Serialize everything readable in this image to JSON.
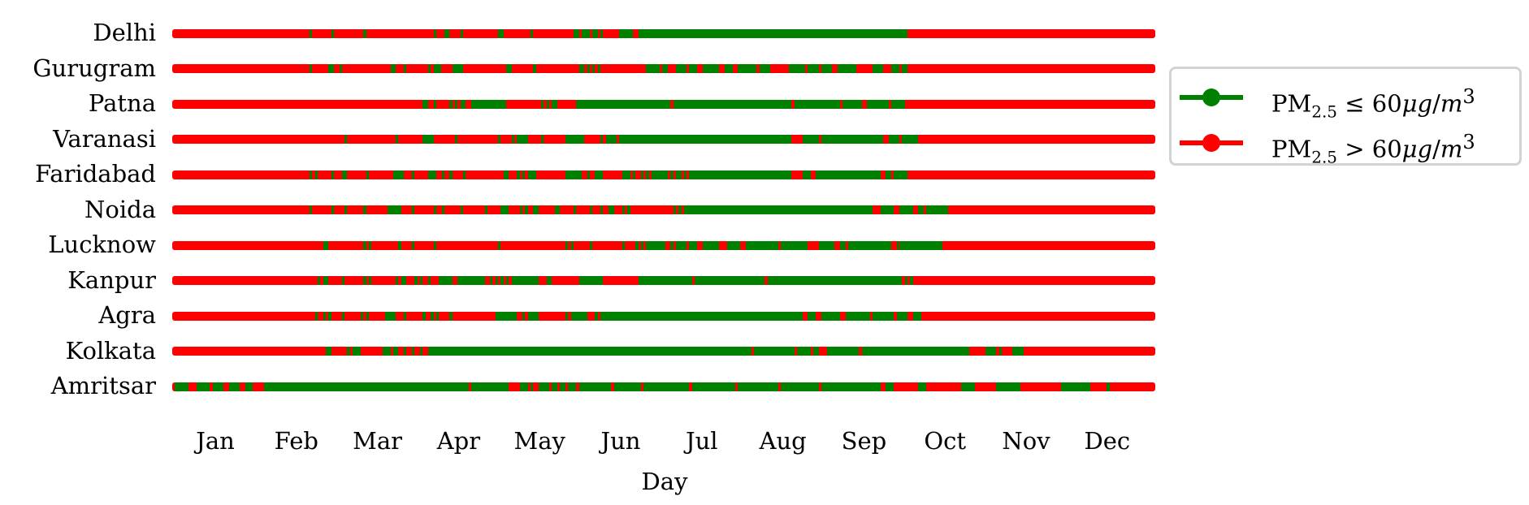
{
  "chart_data": {
    "type": "heatmap",
    "title": "",
    "xlabel": "Day",
    "ylabel": "",
    "x_range_days": [
      0,
      365
    ],
    "x_tick_labels": [
      "Jan",
      "Feb",
      "Mar",
      "Apr",
      "May",
      "Jun",
      "Jul",
      "Aug",
      "Sep",
      "Oct",
      "Nov",
      "Dec"
    ],
    "categories": [
      "Delhi",
      "Gurugram",
      "Patna",
      "Varanasi",
      "Faridabad",
      "Noida",
      "Lucknow",
      "Kanpur",
      "Agra",
      "Kolkata",
      "Amritsar"
    ],
    "colors": {
      "good": "#008000",
      "bad": "#ff0000"
    },
    "legend": [
      {
        "label": "PM2.5 ≤ 60μg/m3",
        "color": "#008000"
      },
      {
        "label": "PM2.5 > 60μg/m3",
        "color": "#ff0000"
      }
    ],
    "legend_position": "upper right, outside plot",
    "note": "Each row is a daily timeline; listed intervals are days (start,end) where PM2.5 ≤ 60 (green); all other days are > 60 (red).",
    "series": [
      {
        "name": "Delhi",
        "good_days": [
          [
            51,
            52
          ],
          [
            59,
            60
          ],
          [
            71,
            72
          ],
          [
            97,
            98
          ],
          [
            101,
            103
          ],
          [
            107,
            108
          ],
          [
            121,
            123
          ],
          [
            133,
            134
          ],
          [
            149,
            151
          ],
          [
            152,
            155
          ],
          [
            156,
            158
          ],
          [
            159,
            160
          ],
          [
            166,
            171
          ],
          [
            173,
            273
          ]
        ]
      },
      {
        "name": "Gurugram",
        "good_days": [
          [
            51,
            52
          ],
          [
            58,
            60
          ],
          [
            62,
            63
          ],
          [
            81,
            83
          ],
          [
            86,
            87
          ],
          [
            95,
            96
          ],
          [
            97,
            100
          ],
          [
            104,
            108
          ],
          [
            124,
            126
          ],
          [
            134,
            135
          ],
          [
            151,
            153
          ],
          [
            154,
            155
          ],
          [
            156,
            157
          ],
          [
            158,
            159
          ],
          [
            176,
            181
          ],
          [
            182,
            184
          ],
          [
            187,
            191
          ],
          [
            192,
            195
          ],
          [
            197,
            203
          ],
          [
            205,
            208
          ],
          [
            210,
            217
          ],
          [
            218,
            222
          ],
          [
            229,
            235
          ],
          [
            236,
            240
          ],
          [
            241,
            245
          ],
          [
            247,
            254
          ],
          [
            260,
            264
          ],
          [
            267,
            270
          ],
          [
            271,
            273
          ]
        ]
      },
      {
        "name": "Patna",
        "good_days": [
          [
            93,
            95
          ],
          [
            97,
            98
          ],
          [
            103,
            104
          ],
          [
            105,
            106
          ],
          [
            107,
            109
          ],
          [
            111,
            124
          ],
          [
            137,
            138
          ],
          [
            139,
            140
          ],
          [
            141,
            143
          ],
          [
            150,
            185
          ],
          [
            186,
            230
          ],
          [
            231,
            248
          ],
          [
            249,
            256
          ],
          [
            258,
            266
          ],
          [
            267,
            272
          ]
        ]
      },
      {
        "name": "Varanasi",
        "good_days": [
          [
            64,
            65
          ],
          [
            83,
            84
          ],
          [
            93,
            97
          ],
          [
            105,
            106
          ],
          [
            121,
            122
          ],
          [
            126,
            127
          ],
          [
            128,
            132
          ],
          [
            137,
            138
          ],
          [
            146,
            153
          ],
          [
            159,
            160
          ],
          [
            161,
            165
          ],
          [
            166,
            230
          ],
          [
            234,
            240
          ],
          [
            241,
            264
          ],
          [
            266,
            270
          ],
          [
            271,
            277
          ]
        ]
      },
      {
        "name": "Faridabad",
        "good_days": [
          [
            51,
            52
          ],
          [
            53,
            54
          ],
          [
            59,
            60
          ],
          [
            63,
            65
          ],
          [
            72,
            73
          ],
          [
            82,
            86
          ],
          [
            89,
            90
          ],
          [
            95,
            98
          ],
          [
            100,
            101
          ],
          [
            103,
            104
          ],
          [
            108,
            109
          ],
          [
            123,
            125
          ],
          [
            128,
            129
          ],
          [
            130,
            131
          ],
          [
            132,
            135
          ],
          [
            146,
            152
          ],
          [
            154,
            155
          ],
          [
            157,
            160
          ],
          [
            167,
            170
          ],
          [
            171,
            172
          ],
          [
            174,
            175
          ],
          [
            176,
            177
          ],
          [
            178,
            184
          ],
          [
            185,
            186
          ],
          [
            187,
            189
          ],
          [
            190,
            191
          ],
          [
            192,
            230
          ],
          [
            234,
            237
          ],
          [
            239,
            263
          ],
          [
            265,
            267
          ],
          [
            268,
            273
          ]
        ]
      },
      {
        "name": "Noida",
        "good_days": [
          [
            51,
            52
          ],
          [
            59,
            60
          ],
          [
            64,
            65
          ],
          [
            71,
            72
          ],
          [
            80,
            85
          ],
          [
            89,
            90
          ],
          [
            97,
            98
          ],
          [
            100,
            101
          ],
          [
            107,
            108
          ],
          [
            116,
            117
          ],
          [
            122,
            125
          ],
          [
            129,
            130
          ],
          [
            131,
            132
          ],
          [
            134,
            136
          ],
          [
            142,
            144
          ],
          [
            149,
            150
          ],
          [
            155,
            156
          ],
          [
            159,
            160
          ],
          [
            162,
            164
          ],
          [
            167,
            168
          ],
          [
            169,
            170
          ],
          [
            186,
            187
          ],
          [
            188,
            189
          ],
          [
            190,
            260
          ],
          [
            263,
            268
          ],
          [
            270,
            275
          ],
          [
            277,
            279
          ],
          [
            280,
            288
          ]
        ]
      },
      {
        "name": "Lucknow",
        "good_days": [
          [
            56,
            58
          ],
          [
            71,
            72
          ],
          [
            73,
            74
          ],
          [
            84,
            85
          ],
          [
            89,
            90
          ],
          [
            97,
            98
          ],
          [
            121,
            122
          ],
          [
            146,
            147
          ],
          [
            148,
            149
          ],
          [
            155,
            156
          ],
          [
            167,
            168
          ],
          [
            172,
            173
          ],
          [
            174,
            175
          ],
          [
            176,
            183
          ],
          [
            185,
            186
          ],
          [
            187,
            191
          ],
          [
            192,
            195
          ],
          [
            197,
            203
          ],
          [
            206,
            211
          ],
          [
            213,
            225
          ],
          [
            226,
            236
          ],
          [
            240,
            246
          ],
          [
            248,
            250
          ],
          [
            251,
            267
          ],
          [
            269,
            269
          ],
          [
            270,
            286
          ]
        ]
      },
      {
        "name": "Kanpur",
        "good_days": [
          [
            54,
            55
          ],
          [
            56,
            58
          ],
          [
            63,
            64
          ],
          [
            71,
            72
          ],
          [
            73,
            74
          ],
          [
            83,
            84
          ],
          [
            85,
            87
          ],
          [
            90,
            91
          ],
          [
            92,
            93
          ],
          [
            95,
            96
          ],
          [
            99,
            104
          ],
          [
            106,
            116
          ],
          [
            118,
            119
          ],
          [
            120,
            121
          ],
          [
            122,
            123
          ],
          [
            124,
            125
          ],
          [
            126,
            136
          ],
          [
            139,
            141
          ],
          [
            151,
            160
          ],
          [
            173,
            193
          ],
          [
            194,
            220
          ],
          [
            221,
            271
          ],
          [
            272,
            273
          ],
          [
            274,
            275
          ]
        ]
      },
      {
        "name": "Agra",
        "good_days": [
          [
            53,
            54
          ],
          [
            56,
            57
          ],
          [
            58,
            59
          ],
          [
            63,
            64
          ],
          [
            70,
            71
          ],
          [
            72,
            73
          ],
          [
            79,
            83
          ],
          [
            86,
            87
          ],
          [
            93,
            94
          ],
          [
            96,
            97
          ],
          [
            98,
            99
          ],
          [
            103,
            104
          ],
          [
            120,
            128
          ],
          [
            130,
            131
          ],
          [
            132,
            136
          ],
          [
            146,
            147
          ],
          [
            148,
            154
          ],
          [
            157,
            158
          ],
          [
            159,
            234
          ],
          [
            236,
            239
          ],
          [
            241,
            248
          ],
          [
            250,
            259
          ],
          [
            260,
            268
          ],
          [
            269,
            273
          ],
          [
            275,
            278
          ]
        ]
      },
      {
        "name": "Kolkata",
        "good_days": [
          [
            57,
            59
          ],
          [
            65,
            66
          ],
          [
            67,
            70
          ],
          [
            78,
            81
          ],
          [
            82,
            84
          ],
          [
            86,
            87
          ],
          [
            89,
            90
          ],
          [
            92,
            93
          ],
          [
            95,
            215
          ],
          [
            216,
            231
          ],
          [
            232,
            237
          ],
          [
            238,
            240
          ],
          [
            243,
            255
          ],
          [
            256,
            257
          ],
          [
            257,
            296
          ],
          [
            302,
            306
          ],
          [
            307,
            308
          ],
          [
            312,
            316
          ]
        ]
      },
      {
        "name": "Amritsar",
        "good_days": [
          [
            1,
            6
          ],
          [
            9,
            14
          ],
          [
            15,
            19
          ],
          [
            21,
            25
          ],
          [
            27,
            28
          ],
          [
            28,
            30
          ],
          [
            34,
            110
          ],
          [
            111,
            125
          ],
          [
            129,
            132
          ],
          [
            133,
            134
          ],
          [
            136,
            140
          ],
          [
            141,
            143
          ],
          [
            144,
            146
          ],
          [
            147,
            150
          ],
          [
            151,
            163
          ],
          [
            164,
            174
          ],
          [
            175,
            192
          ],
          [
            193,
            209
          ],
          [
            210,
            225
          ],
          [
            226,
            240
          ],
          [
            241,
            263
          ],
          [
            265,
            268
          ],
          [
            277,
            280
          ],
          [
            293,
            298
          ],
          [
            306,
            315
          ],
          [
            330,
            341
          ],
          [
            347,
            348
          ]
        ]
      }
    ]
  },
  "axes": {
    "x_ticks": [
      "Jan",
      "Feb",
      "Mar",
      "Apr",
      "May",
      "Jun",
      "Jul",
      "Aug",
      "Sep",
      "Oct",
      "Nov",
      "Dec"
    ],
    "x_label": "Day",
    "y_labels": [
      "Delhi",
      "Gurugram",
      "Patna",
      "Varanasi",
      "Faridabad",
      "Noida",
      "Lucknow",
      "Kanpur",
      "Agra",
      "Kolkata",
      "Amritsar"
    ]
  },
  "legend": {
    "good": {
      "prefix": "PM",
      "sub": "2.5",
      "op": " ≤ 60",
      "unit_mu": "μ",
      "unit_g": "g",
      "slash": "/",
      "unit_m": "m",
      "sup": "3"
    },
    "bad": {
      "prefix": "PM",
      "sub": "2.5",
      "op": " > 60",
      "unit_mu": "μ",
      "unit_g": "g",
      "slash": "/",
      "unit_m": "m",
      "sup": "3"
    }
  }
}
